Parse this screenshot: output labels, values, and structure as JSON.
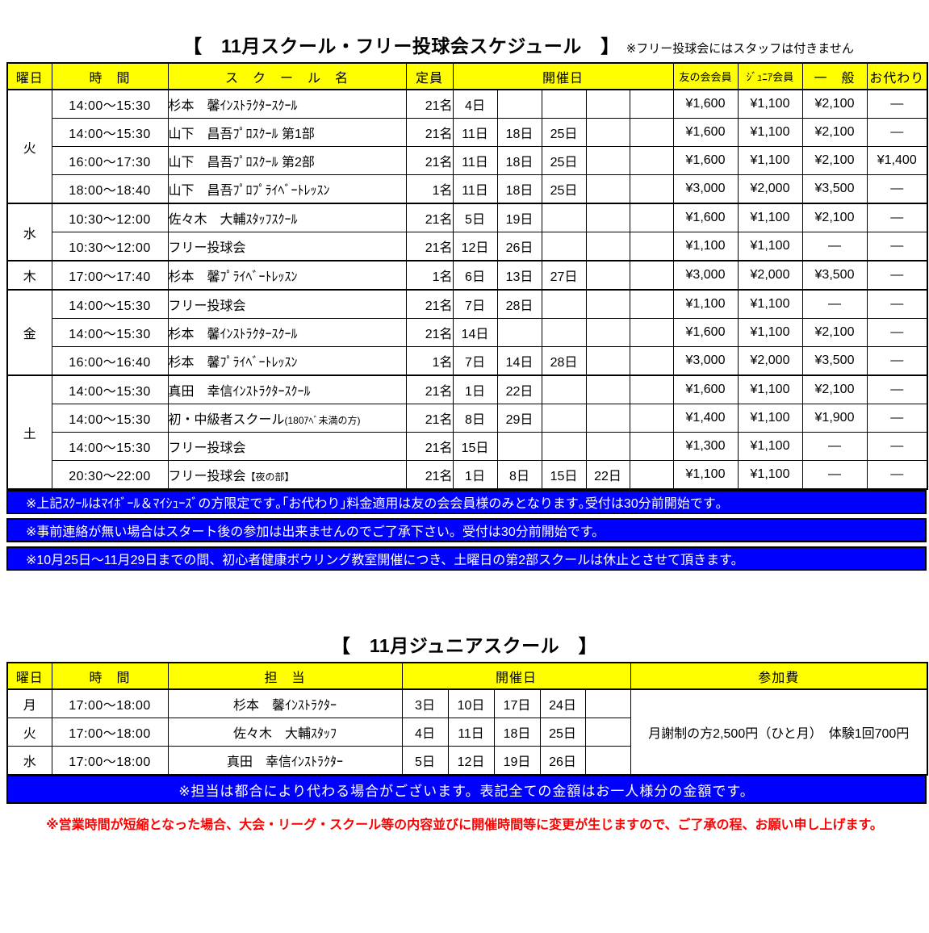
{
  "schedule": {
    "title": "【　11月スクール・フリー投球会スケジュール　】",
    "title_note": "※フリー投球会にはスタッフは付きません",
    "headers": {
      "day": "曜日",
      "time": "時　間",
      "school": "ス　ク　ー　ル　名",
      "capacity": "定員",
      "dates": "開催日",
      "member": "友の会会員",
      "junior": "ｼﾞｭﾆｱ会員",
      "general": "一　般",
      "okawari": "お代わり"
    },
    "rows": [
      {
        "group_start": true,
        "day": "火",
        "day_span": 4,
        "time": "14:00～15:30",
        "name": "杉本　馨ｲﾝｽﾄﾗｸﾀｰｽｸｰﾙ",
        "capacity": "21名",
        "dates": [
          "4日",
          "",
          "",
          "",
          ""
        ],
        "member": "¥1,600",
        "junior": "¥1,100",
        "general": "¥2,100",
        "okawari": "—"
      },
      {
        "time": "14:00～15:30",
        "name": "山下　昌吾ﾌﾟﾛｽｸｰﾙ 第1部",
        "capacity": "21名",
        "dates": [
          "11日",
          "18日",
          "25日",
          "",
          ""
        ],
        "member": "¥1,600",
        "junior": "¥1,100",
        "general": "¥2,100",
        "okawari": "—"
      },
      {
        "time": "16:00～17:30",
        "name": "山下　昌吾ﾌﾟﾛｽｸｰﾙ 第2部",
        "capacity": "21名",
        "dates": [
          "11日",
          "18日",
          "25日",
          "",
          ""
        ],
        "member": "¥1,600",
        "junior": "¥1,100",
        "general": "¥2,100",
        "okawari": "¥1,400"
      },
      {
        "time": "18:00～18:40",
        "name": "山下　昌吾ﾌﾟﾛﾌﾟﾗｲﾍﾞｰﾄﾚｯｽﾝ",
        "capacity": "1名",
        "dates": [
          "11日",
          "18日",
          "25日",
          "",
          ""
        ],
        "member": "¥3,000",
        "junior": "¥2,000",
        "general": "¥3,500",
        "okawari": "—"
      },
      {
        "group_start": true,
        "day": "水",
        "day_span": 2,
        "time": "10:30～12:00",
        "name": "佐々木　大輔ｽﾀｯﾌｽｸｰﾙ",
        "capacity": "21名",
        "dates": [
          "5日",
          "19日",
          "",
          "",
          ""
        ],
        "member": "¥1,600",
        "junior": "¥1,100",
        "general": "¥2,100",
        "okawari": "—"
      },
      {
        "time": "10:30～12:00",
        "name": "フリー投球会",
        "capacity": "21名",
        "dates": [
          "12日",
          "26日",
          "",
          "",
          ""
        ],
        "member": "¥1,100",
        "junior": "¥1,100",
        "general": "—",
        "okawari": "—"
      },
      {
        "group_start": true,
        "day": "木",
        "day_span": 1,
        "time": "17:00～17:40",
        "name": "杉本　馨ﾌﾟﾗｲﾍﾞｰﾄﾚｯｽﾝ",
        "capacity": "1名",
        "dates": [
          "6日",
          "13日",
          "27日",
          "",
          ""
        ],
        "member": "¥3,000",
        "junior": "¥2,000",
        "general": "¥3,500",
        "okawari": "—"
      },
      {
        "group_start": true,
        "day": "金",
        "day_span": 3,
        "time": "14:00～15:30",
        "name": "フリー投球会",
        "capacity": "21名",
        "dates": [
          "7日",
          "28日",
          "",
          "",
          ""
        ],
        "member": "¥1,100",
        "junior": "¥1,100",
        "general": "—",
        "okawari": "—"
      },
      {
        "time": "14:00～15:30",
        "name": "杉本　馨ｲﾝｽﾄﾗｸﾀｰｽｸｰﾙ",
        "capacity": "21名",
        "dates": [
          "14日",
          "",
          "",
          "",
          ""
        ],
        "member": "¥1,600",
        "junior": "¥1,100",
        "general": "¥2,100",
        "okawari": "—"
      },
      {
        "time": "16:00～16:40",
        "name": "杉本　馨ﾌﾟﾗｲﾍﾞｰﾄﾚｯｽﾝ",
        "capacity": "1名",
        "dates": [
          "7日",
          "14日",
          "28日",
          "",
          ""
        ],
        "member": "¥3,000",
        "junior": "¥2,000",
        "general": "¥3,500",
        "okawari": "—"
      },
      {
        "group_start": true,
        "day": "土",
        "day_span": 4,
        "time": "14:00～15:30",
        "name": "真田　幸信ｲﾝｽﾄﾗｸﾀｰｽｸｰﾙ",
        "capacity": "21名",
        "dates": [
          "1日",
          "22日",
          "",
          "",
          ""
        ],
        "member": "¥1,600",
        "junior": "¥1,100",
        "general": "¥2,100",
        "okawari": "—"
      },
      {
        "time": "14:00～15:30",
        "name": "初・中級者スクール",
        "name_small": "(180ｱﾍﾞ未満の方)",
        "capacity": "21名",
        "dates": [
          "8日",
          "29日",
          "",
          "",
          ""
        ],
        "member": "¥1,400",
        "junior": "¥1,100",
        "general": "¥1,900",
        "okawari": "—"
      },
      {
        "time": "14:00～15:30",
        "name": "フリー投球会",
        "capacity": "21名",
        "dates": [
          "15日",
          "",
          "",
          "",
          ""
        ],
        "member": "¥1,300",
        "junior": "¥1,100",
        "general": "—",
        "okawari": "—"
      },
      {
        "time": "20:30～22:00",
        "name": "フリー投球会",
        "name_small": "【夜の部】",
        "capacity": "21名",
        "dates": [
          "1日",
          "8日",
          "15日",
          "22日",
          ""
        ],
        "member": "¥1,100",
        "junior": "¥1,100",
        "general": "—",
        "okawari": "—"
      }
    ],
    "notices": [
      "※上記ｽｸｰﾙはﾏｲﾎﾞｰﾙ＆ﾏｲｼｭｰｽﾞの方限定です｡｢お代わり｣料金適用は友の会会員様のみとなります｡受付は30分前開始です｡",
      "※事前連絡が無い場合はスタート後の参加は出来ませんのでご了承下さい。受付は30分前開始です。",
      "※10月25日～11月29日までの間、初心者健康ボウリング教室開催につき、土曜日の第2部スクールは休止とさせて頂きます。"
    ]
  },
  "junior": {
    "title": "【　11月ジュニアスクール　】",
    "headers": {
      "day": "曜日",
      "time": "時　間",
      "staff": "担　当",
      "dates": "開催日",
      "fee": "参加費"
    },
    "rows": [
      {
        "day": "月",
        "time": "17:00～18:00",
        "staff": "杉本　馨ｲﾝｽﾄﾗｸﾀｰ",
        "dates": [
          "3日",
          "10日",
          "17日",
          "24日",
          ""
        ]
      },
      {
        "day": "火",
        "time": "17:00～18:00",
        "staff": "佐々木　大輔ｽﾀｯﾌ",
        "dates": [
          "4日",
          "11日",
          "18日",
          "25日",
          ""
        ]
      },
      {
        "day": "水",
        "time": "17:00～18:00",
        "staff": "真田　幸信ｲﾝｽﾄﾗｸﾀｰ",
        "dates": [
          "5日",
          "12日",
          "19日",
          "26日",
          ""
        ]
      }
    ],
    "fee": "月謝制の方2,500円（ひと月）　体験1回700円",
    "notice": "※担当は都合により代わる場合がございます。表記全ての金額はお一人様分の金額です。"
  },
  "footer_note": "※営業時間が短縮となった場合、大会・リーグ・スクール等の内容並びに開催時間等に変更が生じますので、ご了承の程、お願い申し上げます。",
  "colors": {
    "header_bg": "#FFFF00",
    "notice_bg": "#0000FF",
    "notice_text": "#FFFFFF",
    "footer_text": "#FF0000",
    "border": "#000000"
  }
}
